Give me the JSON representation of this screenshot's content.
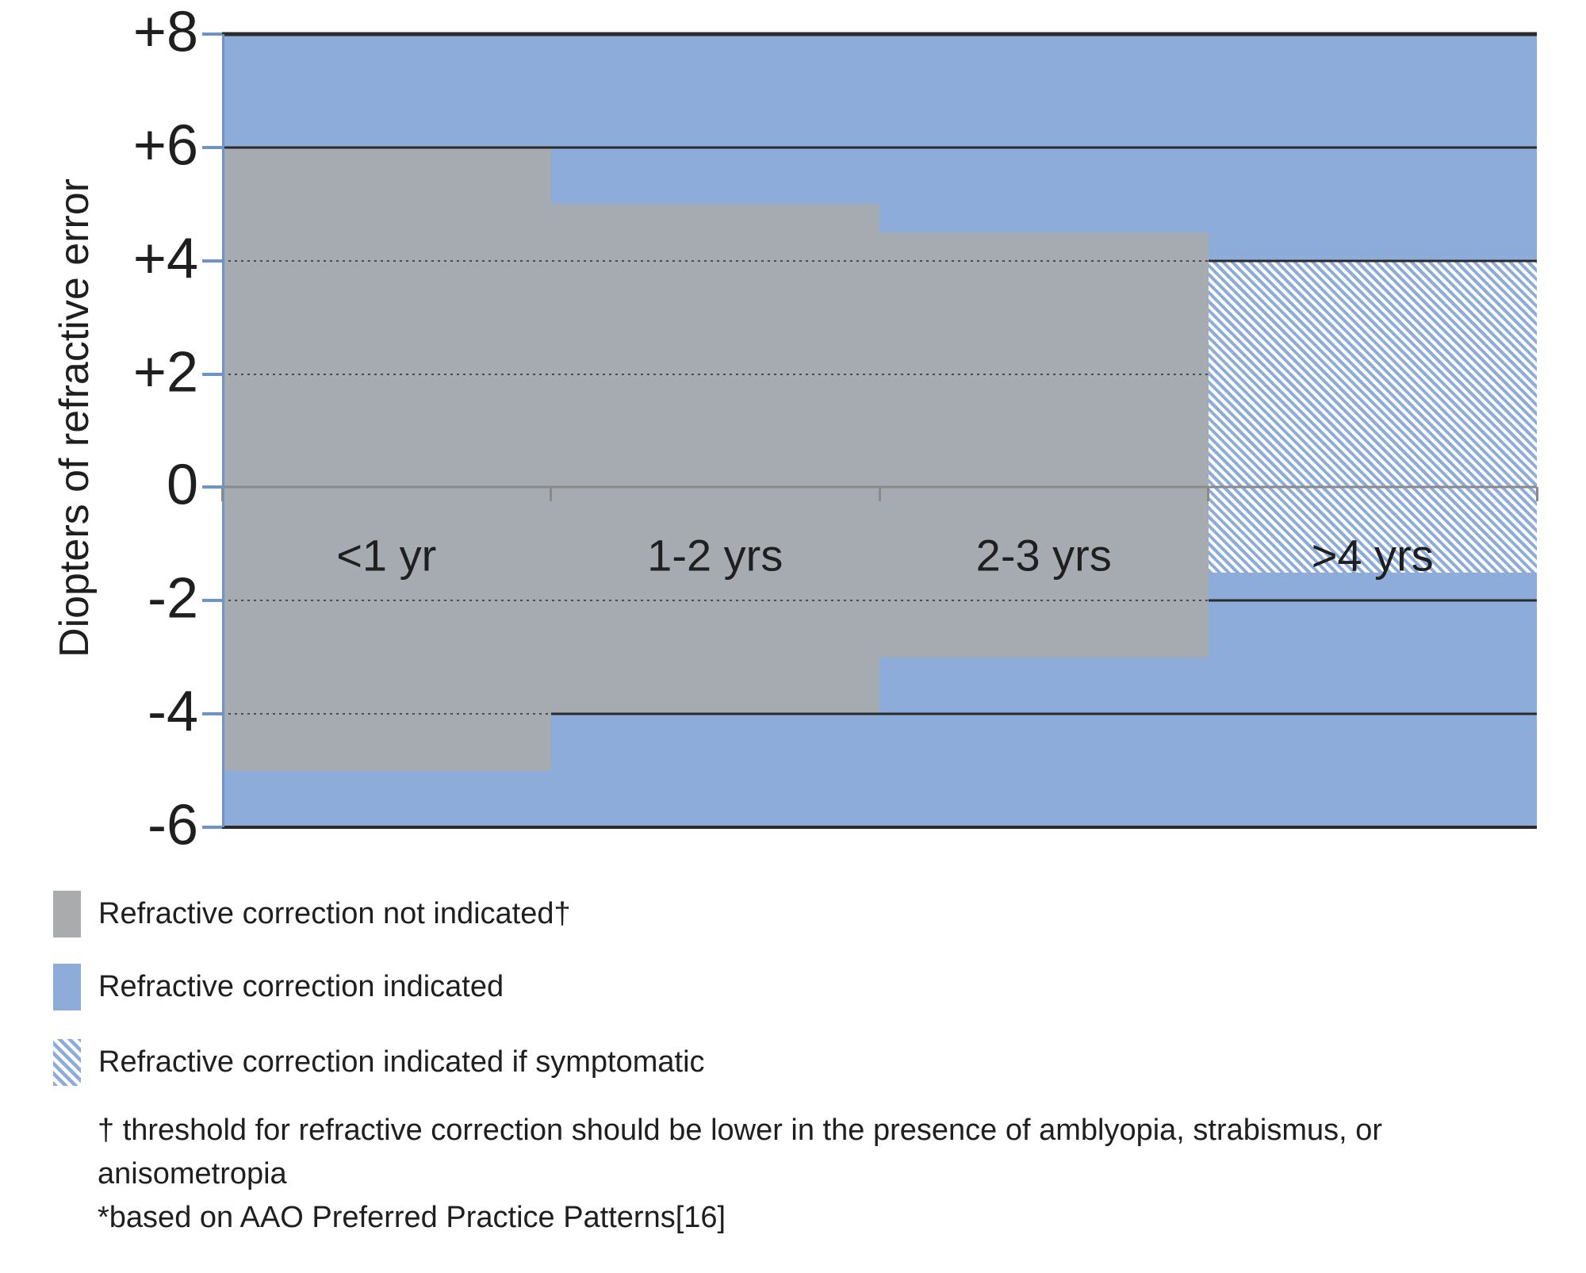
{
  "colors": {
    "indicated_blue": "#8EACD9",
    "not_indicated_gray": "#A9ABAD",
    "axis_blue": "#6E93C4",
    "dark_line": "#2B2B2B",
    "zero_line": "#8A8A8A",
    "text": "#1F1F1F"
  },
  "chart_data": {
    "type": "area",
    "ylabel": "Diopters of refractive error",
    "ylim": [
      -6,
      8
    ],
    "yticks": [
      {
        "value": 8,
        "label": "+8"
      },
      {
        "value": 6,
        "label": "+6"
      },
      {
        "value": 4,
        "label": "+4"
      },
      {
        "value": 2,
        "label": "+2"
      },
      {
        "value": 0,
        "label": "0"
      },
      {
        "value": -2,
        "label": "-2"
      },
      {
        "value": -4,
        "label": "-4"
      },
      {
        "value": -6,
        "label": "-6"
      }
    ],
    "categories": [
      "<1 yr",
      "1-2 yrs",
      "2-3 yrs",
      ">4 yrs"
    ],
    "zones": {
      "correction_indicated": {
        "label": "Refractive correction indicated",
        "range": [
          -6,
          8
        ],
        "applies": "background"
      },
      "correction_not_indicated": {
        "label": "Refractive correction not indicated†",
        "ranges_by_category": [
          {
            "category": "<1 yr",
            "range": [
              -5,
              6
            ]
          },
          {
            "category": "1-2 yrs",
            "range": [
              -4,
              5
            ]
          },
          {
            "category": "2-3 yrs",
            "range": [
              -3,
              4.5
            ]
          },
          {
            "category": ">4 yrs",
            "range": null
          }
        ]
      },
      "correction_if_symptomatic": {
        "label": "Refractive correction indicated if symptomatic",
        "ranges_by_category": [
          {
            "category": "<1 yr",
            "range": null
          },
          {
            "category": "1-2 yrs",
            "range": null
          },
          {
            "category": "2-3 yrs",
            "range": null
          },
          {
            "category": ">4 yrs",
            "range": [
              -1.5,
              4
            ]
          }
        ]
      }
    },
    "grid": true,
    "legend_position": "bottom-left"
  },
  "legend": {
    "items": [
      {
        "swatch": "gray",
        "label": "Refractive correction not indicated†"
      },
      {
        "swatch": "blue",
        "label": "Refractive correction indicated"
      },
      {
        "swatch": "hatch",
        "label": "Refractive correction indicated if symptomatic"
      }
    ]
  },
  "footnotes": {
    "dagger": "† threshold for refractive correction should be lower in the presence of amblyopia, strabismus, or anisometropia",
    "asterisk": "*based on AAO Preferred Practice Patterns[16]"
  }
}
